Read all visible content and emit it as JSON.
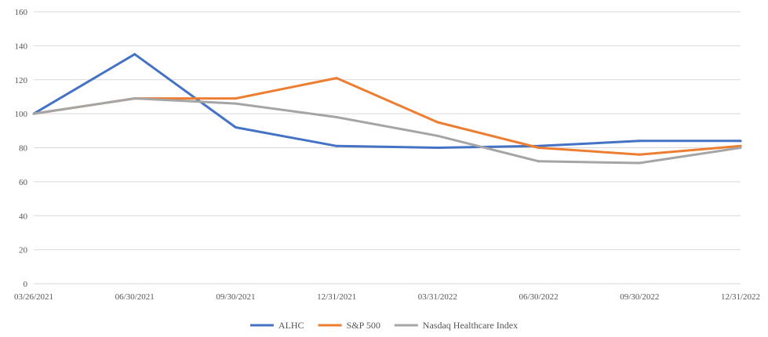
{
  "chart_data": {
    "type": "line",
    "title": "",
    "xlabel": "",
    "ylabel": "",
    "categories": [
      "03/26/2021",
      "06/30/2021",
      "09/30/2021",
      "12/31/2021",
      "03/31/2022",
      "06/30/2022",
      "09/30/2022",
      "12/31/2022"
    ],
    "ylim": [
      0,
      160
    ],
    "yticks": [
      "0",
      "20",
      "40",
      "60",
      "80",
      "100",
      "120",
      "140",
      "160"
    ],
    "grid": true,
    "legend_position": "bottom",
    "series": [
      {
        "name": "ALHC",
        "color": "#4472c4",
        "values": [
          100,
          135,
          92,
          81,
          80,
          81,
          84,
          84
        ]
      },
      {
        "name": "S&P 500",
        "color": "#ed7d31",
        "values": [
          100,
          109,
          109,
          121,
          95,
          80,
          76,
          81
        ]
      },
      {
        "name": "Nasdaq Healthcare Index",
        "color": "#a5a5a5",
        "values": [
          100,
          109,
          106,
          98,
          87,
          72,
          71,
          80
        ]
      }
    ]
  }
}
